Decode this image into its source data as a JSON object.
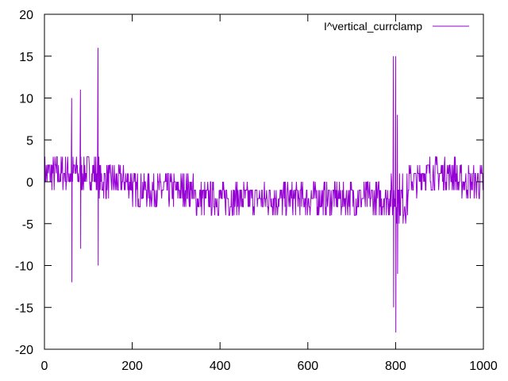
{
  "chart_data": {
    "type": "line",
    "title": "",
    "xlabel": "",
    "ylabel": "",
    "xlim": [
      0,
      1000
    ],
    "ylim": [
      -20,
      20
    ],
    "x_ticks": [
      0,
      200,
      400,
      600,
      800,
      1000
    ],
    "y_ticks": [
      -20,
      -15,
      -10,
      -5,
      0,
      5,
      10,
      15,
      20
    ],
    "grid": false,
    "legend_position": "top-right",
    "series": [
      {
        "name": "I^vertical_currclamp",
        "color": "#9400d3",
        "segments": [
          {
            "x_start": 0,
            "x_end": 60,
            "low": -1,
            "high": 3
          },
          {
            "x_start": 60,
            "x_end": 125,
            "low": -1,
            "high": 3
          },
          {
            "x_start": 125,
            "x_end": 200,
            "low": -2,
            "high": 2
          },
          {
            "x_start": 200,
            "x_end": 270,
            "low": -3,
            "high": 1
          },
          {
            "x_start": 270,
            "x_end": 340,
            "low": -3,
            "high": 1
          },
          {
            "x_start": 340,
            "x_end": 640,
            "low": -4,
            "high": 0
          },
          {
            "x_start": 640,
            "x_end": 790,
            "low": -4,
            "high": 0
          },
          {
            "x_start": 790,
            "x_end": 830,
            "low": -5,
            "high": 1
          },
          {
            "x_start": 830,
            "x_end": 855,
            "low": -2,
            "high": 2
          },
          {
            "x_start": 855,
            "x_end": 940,
            "low": -1,
            "high": 3
          },
          {
            "x_start": 940,
            "x_end": 1000,
            "low": -2,
            "high": 2
          }
        ],
        "spikes": [
          {
            "x": 62,
            "low": -12,
            "high": 10
          },
          {
            "x": 82,
            "low": -8,
            "high": 11
          },
          {
            "x": 122,
            "low": -10,
            "high": 16
          },
          {
            "x": 795,
            "low": -15,
            "high": 15
          },
          {
            "x": 800,
            "low": -18,
            "high": 15
          },
          {
            "x": 804,
            "low": -11,
            "high": 8
          }
        ]
      }
    ]
  }
}
